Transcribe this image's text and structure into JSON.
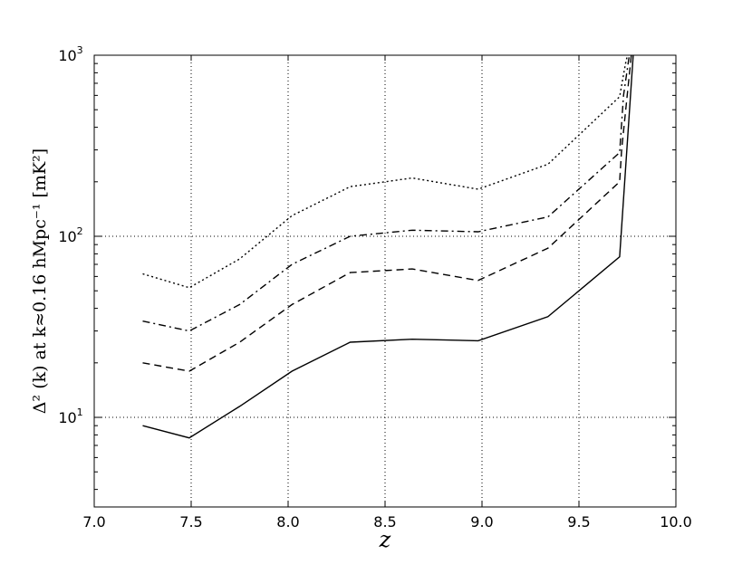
{
  "chart_data": {
    "type": "line",
    "xlabel": "z",
    "ylabel": "Δ² (k) at k≈0.16 hMpc⁻¹ [mK²]",
    "xlim": [
      7.0,
      10.0
    ],
    "ylim": [
      3.2,
      1000
    ],
    "yscale": "log",
    "grid": true,
    "x_ticks": [
      "7.0",
      "7.5",
      "8.0",
      "8.5",
      "9.0",
      "9.5",
      "10.0"
    ],
    "y_ticks": [
      {
        "base": "10",
        "exp": "1"
      },
      {
        "base": "10",
        "exp": "2"
      },
      {
        "base": "10",
        "exp": "3"
      }
    ],
    "series": [
      {
        "style": "solid",
        "color": "#000000",
        "x": [
          7.25,
          7.49,
          7.75,
          8.02,
          8.32,
          8.64,
          8.98,
          9.34,
          9.71,
          9.78
        ],
        "y": [
          9.0,
          7.7,
          11.5,
          18.0,
          26.0,
          27.0,
          26.5,
          36.0,
          77.0,
          1000
        ]
      },
      {
        "style": "dashed",
        "color": "#000000",
        "x": [
          7.25,
          7.49,
          7.75,
          8.02,
          8.32,
          8.64,
          8.98,
          9.34,
          9.71,
          9.72,
          9.77
        ],
        "y": [
          20.0,
          18.0,
          26.0,
          42.0,
          63.0,
          66.0,
          57.0,
          86.0,
          200.0,
          300.0,
          1000
        ]
      },
      {
        "style": "dashdot",
        "color": "#000000",
        "x": [
          7.25,
          7.49,
          7.75,
          8.02,
          8.32,
          8.64,
          8.98,
          9.34,
          9.71,
          9.73,
          9.76
        ],
        "y": [
          34.0,
          30.0,
          42.0,
          70.0,
          100.0,
          108.0,
          106.0,
          128.0,
          290.0,
          600.0,
          1000
        ]
      },
      {
        "style": "dotted",
        "color": "#000000",
        "x": [
          7.25,
          7.49,
          7.75,
          8.02,
          8.32,
          8.64,
          8.98,
          9.34,
          9.71,
          9.74,
          9.75
        ],
        "y": [
          62.0,
          52.0,
          75.0,
          130.0,
          188.0,
          210.0,
          182.0,
          250.0,
          590.0,
          900.0,
          1000
        ]
      }
    ]
  }
}
